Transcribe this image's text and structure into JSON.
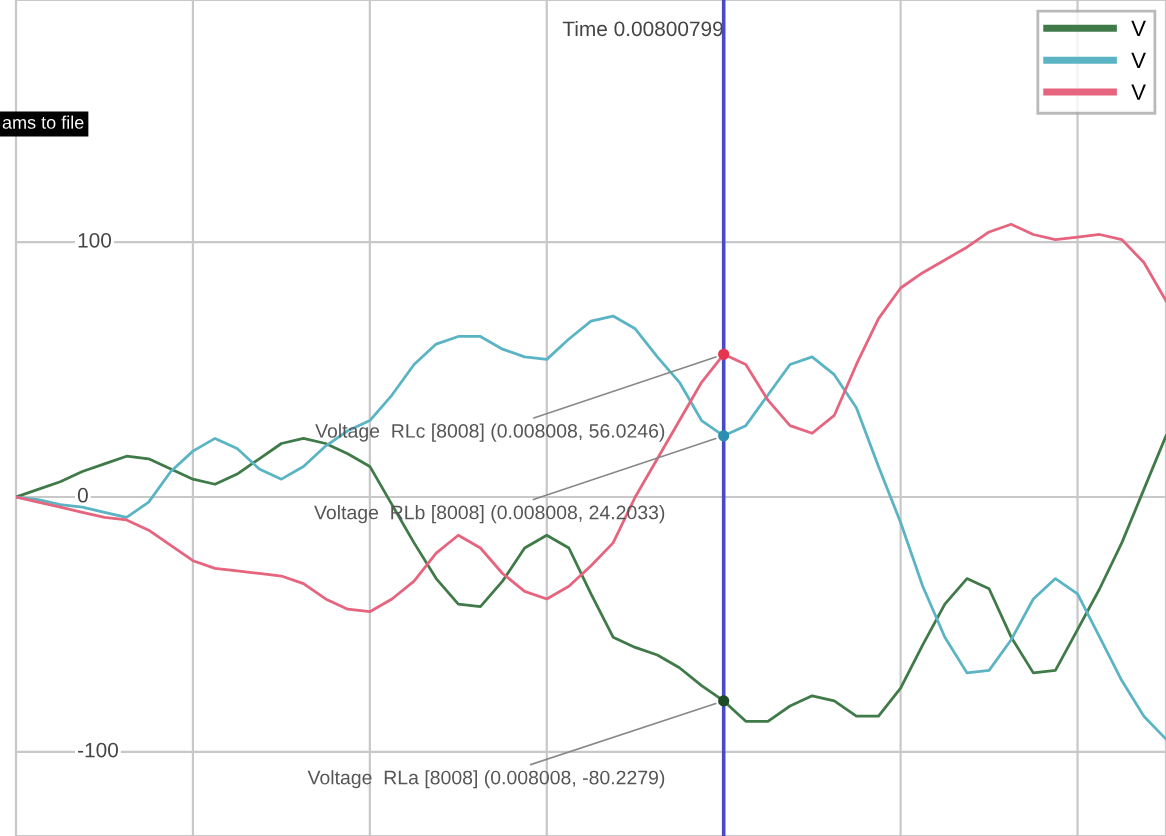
{
  "chart_data": {
    "type": "line",
    "categories": [
      null,
      null,
      null,
      null,
      null,
      null,
      null,
      null,
      null,
      null,
      null,
      null,
      null,
      null,
      null,
      null,
      null,
      null,
      null,
      null,
      null,
      null,
      null,
      null,
      null,
      null,
      null,
      null,
      null,
      null,
      null,
      null,
      null,
      null,
      null,
      null,
      null,
      null,
      null,
      null,
      null,
      null,
      null,
      null,
      null,
      null,
      null,
      null,
      null,
      null,
      null,
      null,
      null
    ],
    "series": [
      {
        "name": "V",
        "color": "#3f7a48",
        "values": [
          0,
          3,
          6,
          10,
          13,
          16,
          15,
          11,
          7,
          5,
          9,
          15,
          21,
          23,
          21,
          17,
          12,
          -3,
          -18,
          -32,
          -42,
          -43,
          -33,
          -20,
          -15,
          -20,
          -38,
          -55,
          -59,
          -62,
          -67,
          -74,
          -80,
          -88,
          -88,
          -82,
          -78,
          -80,
          -86,
          -86,
          -75,
          -58,
          -42,
          -32,
          -36,
          -55,
          -69,
          -68,
          -52,
          -36,
          -18,
          3,
          24
        ]
      },
      {
        "name": "V",
        "color": "#5ab4c4",
        "values": [
          0,
          -1,
          -3,
          -4,
          -6,
          -8,
          -2,
          10,
          18,
          23,
          19,
          11,
          7,
          12,
          20,
          26,
          30,
          40,
          52,
          60,
          63,
          63,
          58,
          55,
          54,
          62,
          69,
          71,
          66,
          55,
          45,
          30,
          24,
          28,
          40,
          52,
          55,
          48,
          35,
          12,
          -10,
          -35,
          -55,
          -69,
          -68,
          -56,
          -40,
          -32,
          -38,
          -55,
          -72,
          -86,
          -95
        ]
      },
      {
        "name": "V",
        "color": "#e6647e",
        "values": [
          0,
          -2,
          -4,
          -6,
          -8,
          -9,
          -13,
          -19,
          -25,
          -28,
          -29,
          -30,
          -31,
          -34,
          -40,
          -44,
          -45,
          -40,
          -33,
          -22,
          -15,
          -20,
          -30,
          -37,
          -40,
          -35,
          -27,
          -18,
          0,
          15,
          30,
          45,
          56,
          52,
          38,
          28,
          25,
          32,
          52,
          70,
          82,
          88,
          93,
          98,
          104,
          107,
          103,
          101,
          102,
          103,
          101,
          92,
          77
        ]
      },
      {
        "type": "scatter",
        "marker": "circle",
        "color": "#e6364f",
        "values": [
          null,
          null,
          null,
          null,
          null,
          null,
          null,
          null,
          null,
          null,
          null,
          null,
          null,
          null,
          null,
          null,
          null,
          null,
          null,
          null,
          null,
          null,
          null,
          null,
          null,
          null,
          null,
          null,
          null,
          null,
          null,
          null,
          56,
          null,
          null,
          null,
          null,
          null,
          null,
          null,
          null,
          null,
          null,
          null,
          null,
          null,
          null,
          null,
          null,
          null,
          null,
          null,
          null
        ]
      },
      {
        "type": "scatter",
        "marker": "circle",
        "color": "#2a8fb0",
        "values": [
          null,
          null,
          null,
          null,
          null,
          null,
          null,
          null,
          null,
          null,
          null,
          null,
          null,
          null,
          null,
          null,
          null,
          null,
          null,
          null,
          null,
          null,
          null,
          null,
          null,
          null,
          null,
          null,
          null,
          null,
          null,
          null,
          24,
          null,
          null,
          null,
          null,
          null,
          null,
          null,
          null,
          null,
          null,
          null,
          null,
          null,
          null,
          null,
          null,
          null,
          null,
          null,
          null
        ]
      },
      {
        "type": "scatter",
        "marker": "circle",
        "color": "#1f4a26",
        "values": [
          null,
          null,
          null,
          null,
          null,
          null,
          null,
          null,
          null,
          null,
          null,
          null,
          null,
          null,
          null,
          null,
          null,
          null,
          null,
          null,
          null,
          null,
          null,
          null,
          null,
          null,
          null,
          null,
          null,
          null,
          null,
          null,
          -80,
          null,
          null,
          null,
          null,
          null,
          null,
          null,
          null,
          null,
          null,
          null,
          null,
          null,
          null,
          null,
          null,
          null,
          null,
          null,
          null
        ]
      }
    ],
    "ylim": [
      -133,
      195
    ],
    "yticks": [
      -100,
      0,
      100
    ],
    "grid": true,
    "legend": "top right",
    "line_style": "solid",
    "annotations": [
      "Voltage  RLc [8008] (0.008008, 56.0246)",
      "Voltage  RLb [8008] (0.008008, 24.2033)",
      "Voltage  RLa [8008] (0.008008, -80.2279)",
      "Time 0.00800799",
      "ams to file"
    ]
  }
}
